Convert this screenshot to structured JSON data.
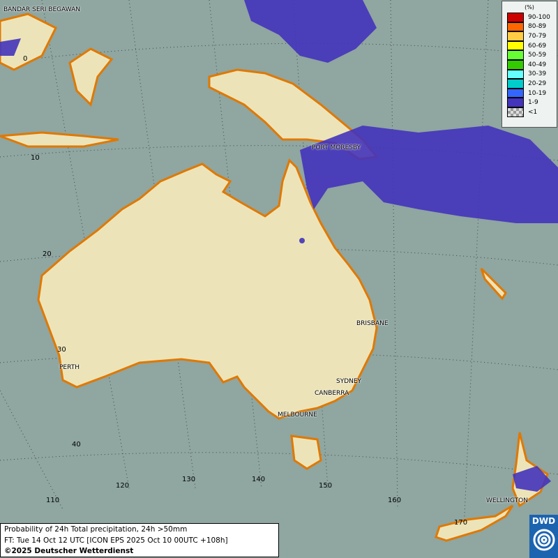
{
  "legend": {
    "title": "(%)",
    "items": [
      {
        "label": "90-100",
        "color": "#cc0000"
      },
      {
        "label": "80-89",
        "color": "#ff6600"
      },
      {
        "label": "70-79",
        "color": "#ffcc44"
      },
      {
        "label": "60-69",
        "color": "#ffff00"
      },
      {
        "label": "50-59",
        "color": "#66ff33"
      },
      {
        "label": "40-49",
        "color": "#33cc00"
      },
      {
        "label": "30-39",
        "color": "#66ffff"
      },
      {
        "label": "20-29",
        "color": "#00cccc"
      },
      {
        "label": "10-19",
        "color": "#3366ff"
      },
      {
        "label": "1-9",
        "color": "#4433bb"
      },
      {
        "label": "<1",
        "color": "#bbbbbb"
      }
    ]
  },
  "graticule": {
    "latitudes": [
      "0",
      "10",
      "20",
      "30",
      "40"
    ],
    "longitudes": [
      "110",
      "120",
      "130",
      "140",
      "150",
      "160",
      "170"
    ]
  },
  "cities": [
    "BANDAR SERI BEGAWAN",
    "PORT MORESBY",
    "BRISBANE",
    "PERTH",
    "SYDNEY",
    "CANBERRA",
    "MELBOURNE",
    "WELLINGTON"
  ],
  "info": {
    "line1": "Probability of 24h Total precipitation, 24h >50mm",
    "line2": "FT: Tue 14 Oct 12 UTC [ICON EPS 2025 Oct 10 00UTC +108h]",
    "line3": "©2025 Deutscher Wetterdienst"
  },
  "logo": {
    "text": "DWD"
  },
  "colors": {
    "sea": "#8fa6a1",
    "land": "#ece4b8",
    "coast": "#e07800",
    "precip": "#4433bb"
  }
}
